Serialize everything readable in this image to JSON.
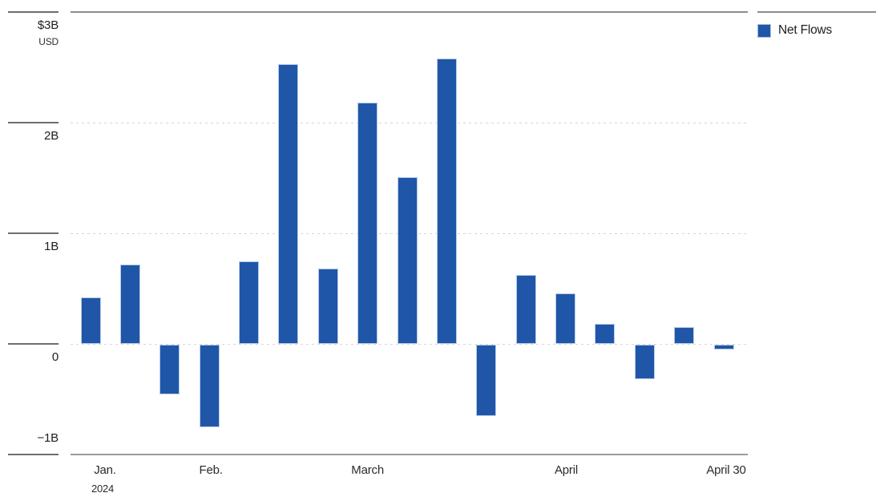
{
  "legend": {
    "items": [
      {
        "label": "Net Flows",
        "swatch_color": "#1F56A8"
      }
    ]
  },
  "chart_data": {
    "type": "bar",
    "title": "",
    "unit": "billions USD",
    "x_description": "Weekly bars from January 2024 through April 30, 2024",
    "series": [
      {
        "name": "Net Flows",
        "color": "#1F56A8",
        "values": [
          0.42,
          0.72,
          -0.46,
          -0.75,
          0.75,
          2.53,
          0.68,
          2.18,
          1.51,
          2.58,
          -0.65,
          0.62,
          0.46,
          0.18,
          -0.32,
          0.15,
          -0.05
        ]
      }
    ],
    "x_axis": {
      "tick_labels": [
        {
          "bar_index": 0,
          "label": "Jan.",
          "sublabel": "2024"
        },
        {
          "bar_index": 3,
          "label": "Feb."
        },
        {
          "bar_index": 7,
          "label": "March"
        },
        {
          "bar_index": 12,
          "label": "April"
        },
        {
          "bar_index": 16,
          "label": "April 30"
        }
      ]
    },
    "y_axis": {
      "range": [
        -1,
        3
      ],
      "ticks": [
        {
          "value": 3,
          "label": "$3B",
          "sublabel": "USD"
        },
        {
          "value": 2,
          "label": "2B"
        },
        {
          "value": 1,
          "label": "1B"
        },
        {
          "value": 0,
          "label": "0"
        },
        {
          "value": -1,
          "label": "−1B"
        }
      ],
      "gridlines": "dotted"
    },
    "legend_position": "top-right"
  },
  "colors": {
    "bar_fill": "#1F56A8",
    "bar_border": "#B9CBE9",
    "grid_dotted": "#D5D5D5",
    "tick_line": "#6E6E6E",
    "top_border": "#8C8C8C",
    "axis_line": "#9B9B9B",
    "text": "#1E1E1E"
  }
}
